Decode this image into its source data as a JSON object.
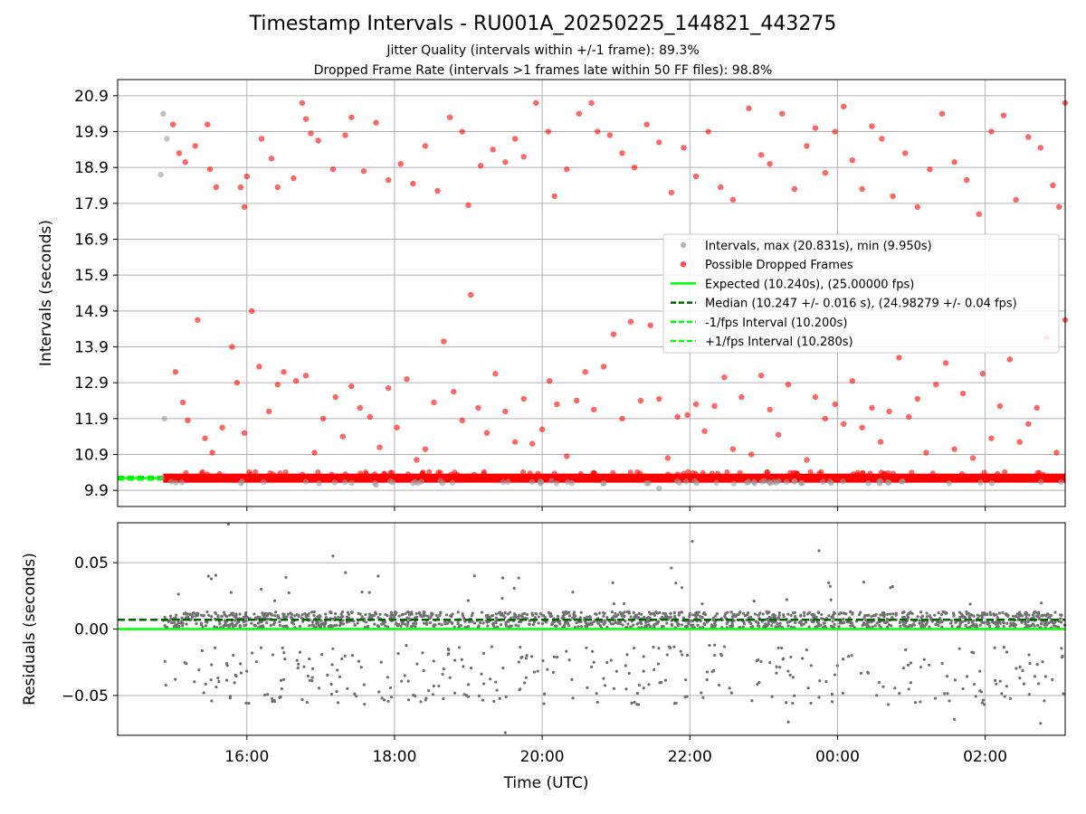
{
  "title": "Timestamp Intervals - RU001A_20250225_144821_443275",
  "subtitle_1": "Jitter Quality (intervals within +/-1 frame): 89.3%",
  "subtitle_2": "Dropped Frame Rate (intervals >1 frames late within 50 FF files): 98.8%",
  "colors": {
    "intervals": "#999999",
    "dropped": "#ff0000",
    "expected": "#00ff00",
    "median": "#006400",
    "residuals": "#707070",
    "grid": "#b0b0b0"
  },
  "chart_data": [
    {
      "type": "scatter",
      "panel": "top",
      "ylabel": "Intervals (seconds)",
      "xlim": [
        "14:15",
        "03:05"
      ],
      "ylim": [
        9.45,
        21.35
      ],
      "y_ticks": [
        "9.9",
        "10.9",
        "11.9",
        "12.9",
        "13.9",
        "14.9",
        "15.9",
        "16.9",
        "17.9",
        "18.9",
        "19.9",
        "20.9"
      ],
      "x_ticks": [
        "16:00",
        "18:00",
        "20:00",
        "22:00",
        "00:00",
        "02:00"
      ],
      "grid": true,
      "legend_position": "right",
      "series": [
        {
          "name": "Intervals, max (20.831s), min (9.950s)",
          "color": "#999999",
          "points": [
            [
              "14:52",
              20.4
            ],
            [
              "14:55",
              19.7
            ],
            [
              "14:50",
              18.7
            ],
            [
              "14:53",
              11.9
            ],
            [
              "14:51",
              10.25
            ],
            [
              "17:45",
              10.05
            ],
            [
              "18:15",
              10.1
            ],
            [
              "20:50",
              10.1
            ],
            [
              "21:35",
              9.95
            ],
            [
              "23:55",
              10.1
            ],
            [
              "00:25",
              10.1
            ],
            [
              "00:35",
              10.15
            ]
          ]
        },
        {
          "name": "Possible Dropped Frames",
          "color": "#ff0000",
          "points": [
            [
              "15:00",
              20.1
            ],
            [
              "15:05",
              19.3
            ],
            [
              "15:10",
              19.05
            ],
            [
              "15:18",
              19.5
            ],
            [
              "15:28",
              20.1
            ],
            [
              "15:30",
              18.85
            ],
            [
              "15:35",
              18.35
            ],
            [
              "15:55",
              18.35
            ],
            [
              "15:58",
              17.8
            ],
            [
              "16:00",
              18.65
            ],
            [
              "16:12",
              19.7
            ],
            [
              "16:20",
              19.15
            ],
            [
              "16:25",
              18.35
            ],
            [
              "16:38",
              18.6
            ],
            [
              "16:45",
              20.7
            ],
            [
              "16:48",
              20.25
            ],
            [
              "16:52",
              19.85
            ],
            [
              "16:58",
              19.65
            ],
            [
              "17:10",
              18.85
            ],
            [
              "17:20",
              19.8
            ],
            [
              "17:25",
              20.3
            ],
            [
              "17:35",
              18.8
            ],
            [
              "17:45",
              20.15
            ],
            [
              "17:55",
              18.55
            ],
            [
              "18:05",
              19.0
            ],
            [
              "18:15",
              18.45
            ],
            [
              "18:25",
              19.5
            ],
            [
              "18:35",
              18.25
            ],
            [
              "18:45",
              20.3
            ],
            [
              "18:55",
              19.9
            ],
            [
              "19:00",
              17.85
            ],
            [
              "19:10",
              18.95
            ],
            [
              "19:20",
              19.4
            ],
            [
              "19:30",
              19.05
            ],
            [
              "19:38",
              19.7
            ],
            [
              "19:45",
              19.2
            ],
            [
              "19:55",
              20.7
            ],
            [
              "20:05",
              19.9
            ],
            [
              "20:10",
              18.1
            ],
            [
              "20:20",
              18.85
            ],
            [
              "20:30",
              20.4
            ],
            [
              "20:40",
              20.7
            ],
            [
              "20:45",
              19.9
            ],
            [
              "20:55",
              19.8
            ],
            [
              "21:05",
              19.3
            ],
            [
              "21:15",
              18.9
            ],
            [
              "21:25",
              20.1
            ],
            [
              "21:35",
              19.6
            ],
            [
              "21:45",
              18.2
            ],
            [
              "21:55",
              19.45
            ],
            [
              "22:05",
              18.65
            ],
            [
              "22:15",
              19.9
            ],
            [
              "22:25",
              18.35
            ],
            [
              "22:35",
              18.0
            ],
            [
              "22:48",
              20.55
            ],
            [
              "22:58",
              19.25
            ],
            [
              "23:05",
              19.0
            ],
            [
              "23:15",
              20.4
            ],
            [
              "23:25",
              18.3
            ],
            [
              "23:35",
              19.5
            ],
            [
              "23:42",
              20.0
            ],
            [
              "23:50",
              18.75
            ],
            [
              "23:58",
              19.9
            ],
            [
              "00:05",
              20.6
            ],
            [
              "00:12",
              19.1
            ],
            [
              "00:20",
              18.3
            ],
            [
              "00:28",
              20.05
            ],
            [
              "00:36",
              19.7
            ],
            [
              "00:45",
              18.1
            ],
            [
              "00:55",
              19.3
            ],
            [
              "01:05",
              17.8
            ],
            [
              "01:15",
              18.85
            ],
            [
              "01:25",
              20.4
            ],
            [
              "01:35",
              19.05
            ],
            [
              "01:45",
              18.55
            ],
            [
              "01:55",
              17.6
            ],
            [
              "02:05",
              19.9
            ],
            [
              "02:15",
              20.35
            ],
            [
              "02:25",
              18.0
            ],
            [
              "02:35",
              19.75
            ],
            [
              "02:45",
              19.45
            ],
            [
              "02:55",
              18.4
            ],
            [
              "03:00",
              17.8
            ],
            [
              "03:05",
              20.7
            ],
            [
              "15:02",
              13.2
            ],
            [
              "15:08",
              12.35
            ],
            [
              "15:12",
              11.85
            ],
            [
              "15:20",
              14.65
            ],
            [
              "15:26",
              11.35
            ],
            [
              "15:32",
              10.95
            ],
            [
              "15:40",
              11.65
            ],
            [
              "15:48",
              13.9
            ],
            [
              "15:52",
              12.9
            ],
            [
              "15:58",
              11.5
            ],
            [
              "16:04",
              14.9
            ],
            [
              "16:10",
              13.35
            ],
            [
              "16:18",
              12.1
            ],
            [
              "16:25",
              12.85
            ],
            [
              "16:30",
              13.2
            ],
            [
              "16:40",
              12.95
            ],
            [
              "16:48",
              13.1
            ],
            [
              "16:55",
              10.95
            ],
            [
              "17:02",
              11.9
            ],
            [
              "17:12",
              12.5
            ],
            [
              "17:18",
              11.4
            ],
            [
              "17:25",
              12.8
            ],
            [
              "17:32",
              12.2
            ],
            [
              "17:40",
              11.95
            ],
            [
              "17:48",
              11.1
            ],
            [
              "17:55",
              12.75
            ],
            [
              "18:02",
              11.65
            ],
            [
              "18:10",
              13.0
            ],
            [
              "18:18",
              10.75
            ],
            [
              "18:25",
              11.05
            ],
            [
              "18:32",
              12.35
            ],
            [
              "18:40",
              14.05
            ],
            [
              "18:48",
              12.65
            ],
            [
              "18:55",
              11.85
            ],
            [
              "19:02",
              15.35
            ],
            [
              "19:08",
              12.2
            ],
            [
              "19:15",
              11.5
            ],
            [
              "19:22",
              13.15
            ],
            [
              "19:30",
              12.1
            ],
            [
              "19:38",
              11.25
            ],
            [
              "19:45",
              12.45
            ],
            [
              "19:52",
              11.2
            ],
            [
              "20:00",
              11.6
            ],
            [
              "20:06",
              12.95
            ],
            [
              "20:12",
              12.3
            ],
            [
              "20:20",
              10.85
            ],
            [
              "20:28",
              12.4
            ],
            [
              "20:35",
              13.2
            ],
            [
              "20:42",
              12.15
            ],
            [
              "20:50",
              13.35
            ],
            [
              "20:58",
              14.25
            ],
            [
              "21:05",
              11.9
            ],
            [
              "21:12",
              14.6
            ],
            [
              "21:20",
              12.4
            ],
            [
              "21:28",
              14.5
            ],
            [
              "21:35",
              12.45
            ],
            [
              "21:42",
              10.8
            ],
            [
              "21:50",
              11.95
            ],
            [
              "21:58",
              12.0
            ],
            [
              "22:05",
              12.3
            ],
            [
              "22:12",
              11.55
            ],
            [
              "22:20",
              12.25
            ],
            [
              "22:28",
              13.05
            ],
            [
              "22:35",
              11.05
            ],
            [
              "22:42",
              12.5
            ],
            [
              "22:50",
              10.9
            ],
            [
              "22:58",
              13.1
            ],
            [
              "23:05",
              12.15
            ],
            [
              "23:12",
              11.45
            ],
            [
              "23:20",
              12.85
            ],
            [
              "23:28",
              13.9
            ],
            [
              "23:35",
              10.75
            ],
            [
              "23:42",
              12.5
            ],
            [
              "23:50",
              11.9
            ],
            [
              "23:58",
              12.3
            ],
            [
              "00:05",
              11.75
            ],
            [
              "00:12",
              12.95
            ],
            [
              "00:20",
              11.65
            ],
            [
              "00:28",
              12.2
            ],
            [
              "00:35",
              11.25
            ],
            [
              "00:42",
              12.1
            ],
            [
              "00:50",
              13.6
            ],
            [
              "00:58",
              11.95
            ],
            [
              "01:05",
              12.45
            ],
            [
              "01:12",
              10.95
            ],
            [
              "01:20",
              12.85
            ],
            [
              "01:28",
              13.45
            ],
            [
              "01:35",
              11.05
            ],
            [
              "01:42",
              12.6
            ],
            [
              "01:50",
              10.8
            ],
            [
              "01:58",
              13.15
            ],
            [
              "02:05",
              11.35
            ],
            [
              "02:12",
              12.25
            ],
            [
              "02:20",
              13.55
            ],
            [
              "02:28",
              11.25
            ],
            [
              "02:35",
              11.75
            ],
            [
              "02:42",
              12.2
            ],
            [
              "02:50",
              14.15
            ],
            [
              "02:58",
              10.95
            ],
            [
              "03:05",
              14.65
            ]
          ]
        }
      ],
      "legend": [
        "Intervals, max (20.831s), min (9.950s)",
        "Possible Dropped Frames",
        "Expected (10.240s), (25.00000 fps)",
        "Median (10.247 +/- 0.016 s), (24.98279 +/- 0.04 fps)",
        "-1/fps Interval (10.200s)",
        "+1/fps Interval (10.280s)"
      ],
      "dense_band": {
        "from": "14:52",
        "to": "03:05",
        "y": 10.24
      },
      "reference_lines": {
        "expected": 10.24,
        "median": 10.247,
        "minus_1_fps": 10.2,
        "plus_1_fps": 10.28
      },
      "reference_visible_from": "14:15",
      "reference_visible_to": "14:52"
    },
    {
      "type": "scatter",
      "panel": "bottom",
      "ylabel": "Residuals (seconds)",
      "xlabel": "Time (UTC)",
      "xlim": [
        "14:15",
        "03:05"
      ],
      "ylim": [
        -0.08,
        0.08
      ],
      "y_ticks": [
        "0.05",
        "0.00",
        "−0.05"
      ],
      "x_ticks": [
        "16:00",
        "18:00",
        "20:00",
        "22:00",
        "00:00",
        "02:00"
      ],
      "grid": true,
      "series": [
        {
          "name": "",
          "color": "#707070",
          "band_center": 0.007,
          "band_spread": 0.012,
          "outliers": [
            [
              "15:45",
              0.079
            ],
            [
              "17:10",
              0.055
            ],
            [
              "19:05",
              0.04
            ],
            [
              "21:45",
              0.046
            ],
            [
              "22:02",
              0.066
            ],
            [
              "23:45",
              0.059
            ],
            [
              "19:30",
              -0.078
            ],
            [
              "23:20",
              -0.07
            ],
            [
              "00:05",
              0.012
            ],
            [
              "02:45",
              -0.071
            ],
            [
              "01:35",
              -0.068
            ],
            [
              "15:25",
              -0.048
            ],
            [
              "16:30",
              -0.038
            ],
            [
              "18:40",
              -0.03
            ],
            [
              "20:25",
              -0.052
            ]
          ]
        }
      ],
      "reference_lines": {
        "expected": 0.0,
        "median": 0.007
      }
    }
  ]
}
